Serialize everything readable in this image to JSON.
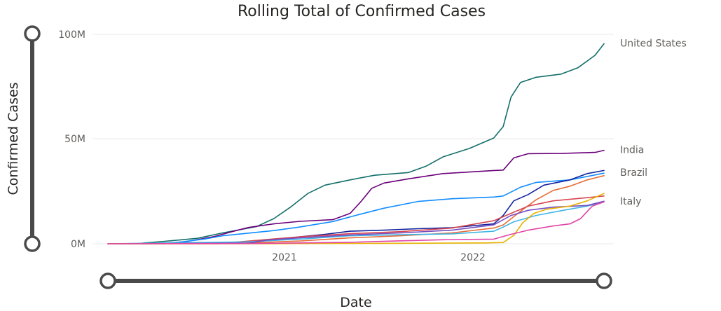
{
  "chart_data": {
    "type": "line",
    "title": "Rolling Total of Confirmed Cases",
    "xlabel": "Date",
    "ylabel": "Confirmed Cases",
    "x_ticks": [
      "2021",
      "2022"
    ],
    "y_ticks": [
      "0M",
      "50M",
      "100M"
    ],
    "x_range": [
      "2020-01-22",
      "2022-07-01"
    ],
    "ylim": [
      0,
      100
    ],
    "y_unit_multiplier": 1000000,
    "grid": true,
    "legend": "none",
    "series": [
      {
        "name": "United States",
        "label": "United States",
        "color": "#136f6b",
        "points": [
          [
            "2020-01-22",
            0
          ],
          [
            "2020-03-15",
            0.1
          ],
          [
            "2020-05-01",
            1.1
          ],
          [
            "2020-07-01",
            2.6
          ],
          [
            "2020-08-15",
            5.2
          ],
          [
            "2020-10-15",
            8.2
          ],
          [
            "2020-11-15",
            12
          ],
          [
            "2020-12-15",
            17.5
          ],
          [
            "2021-01-15",
            24
          ],
          [
            "2021-02-15",
            28
          ],
          [
            "2021-04-01",
            30.5
          ],
          [
            "2021-05-15",
            32.7
          ],
          [
            "2021-07-15",
            34
          ],
          [
            "2021-08-15",
            37
          ],
          [
            "2021-09-15",
            41.5
          ],
          [
            "2021-11-01",
            45.5
          ],
          [
            "2021-12-15",
            50.5
          ],
          [
            "2022-01-01",
            56
          ],
          [
            "2022-01-15",
            70
          ],
          [
            "2022-02-01",
            77
          ],
          [
            "2022-03-01",
            79.5
          ],
          [
            "2022-04-15",
            81
          ],
          [
            "2022-05-15",
            84
          ],
          [
            "2022-06-15",
            90
          ],
          [
            "2022-07-01",
            95.5
          ]
        ]
      },
      {
        "name": "India",
        "label": "India",
        "color": "#6b007b",
        "points": [
          [
            "2020-01-22",
            0
          ],
          [
            "2020-05-01",
            0
          ],
          [
            "2020-06-15",
            1.2
          ],
          [
            "2020-08-01",
            3.5
          ],
          [
            "2020-09-01",
            5.8
          ],
          [
            "2020-10-01",
            7.8
          ],
          [
            "2020-11-15",
            9.5
          ],
          [
            "2021-01-01",
            10.7
          ],
          [
            "2021-03-01",
            11.5
          ],
          [
            "2021-04-01",
            14.5
          ],
          [
            "2021-04-20",
            20
          ],
          [
            "2021-05-10",
            26.5
          ],
          [
            "2021-06-01",
            29
          ],
          [
            "2021-07-15",
            31
          ],
          [
            "2021-09-15",
            33.5
          ],
          [
            "2021-12-15",
            35
          ],
          [
            "2022-01-01",
            35.2
          ],
          [
            "2022-01-20",
            41
          ],
          [
            "2022-02-15",
            43
          ],
          [
            "2022-04-15",
            43.1
          ],
          [
            "2022-06-15",
            43.6
          ],
          [
            "2022-07-01",
            44.6
          ]
        ]
      },
      {
        "name": "Brazil",
        "label": "Brazil",
        "color": "#118dff",
        "points": [
          [
            "2020-01-22",
            0
          ],
          [
            "2020-04-15",
            0
          ],
          [
            "2020-06-01",
            0.8
          ],
          [
            "2020-07-15",
            2.3
          ],
          [
            "2020-08-15",
            3.8
          ],
          [
            "2020-10-01",
            5.1
          ],
          [
            "2020-11-15",
            6.3
          ],
          [
            "2021-01-01",
            8
          ],
          [
            "2021-03-01",
            10.6
          ],
          [
            "2021-04-15",
            13.8
          ],
          [
            "2021-06-01",
            17
          ],
          [
            "2021-08-01",
            20.2
          ],
          [
            "2021-10-01",
            21.5
          ],
          [
            "2021-12-15",
            22.3
          ],
          [
            "2022-01-01",
            22.8
          ],
          [
            "2022-02-01",
            27
          ],
          [
            "2022-03-01",
            29.3
          ],
          [
            "2022-05-01",
            30.5
          ],
          [
            "2022-07-01",
            33.7
          ]
        ]
      },
      {
        "name": "",
        "label": "",
        "color": "#12239e",
        "points": [
          [
            "2020-01-22",
            0
          ],
          [
            "2020-06-01",
            0.1
          ],
          [
            "2020-09-01",
            0.6
          ],
          [
            "2020-11-01",
            1.5
          ],
          [
            "2021-01-01",
            3.3
          ],
          [
            "2021-02-15",
            4.5
          ],
          [
            "2021-04-01",
            6
          ],
          [
            "2021-06-01",
            6.5
          ],
          [
            "2021-08-01",
            7.2
          ],
          [
            "2021-10-01",
            7.7
          ],
          [
            "2021-12-15",
            9.5
          ],
          [
            "2022-01-01",
            13.5
          ],
          [
            "2022-01-20",
            20.5
          ],
          [
            "2022-02-15",
            23.5
          ],
          [
            "2022-03-15",
            28
          ],
          [
            "2022-05-01",
            30.5
          ],
          [
            "2022-06-01",
            33.5
          ],
          [
            "2022-07-01",
            35
          ]
        ]
      },
      {
        "name": "",
        "label": "",
        "color": "#e66c37",
        "points": [
          [
            "2020-01-22",
            0
          ],
          [
            "2020-08-01",
            0
          ],
          [
            "2020-10-01",
            0.4
          ],
          [
            "2021-01-01",
            1.3
          ],
          [
            "2021-04-01",
            2.8
          ],
          [
            "2021-07-01",
            3.8
          ],
          [
            "2021-10-01",
            5.2
          ],
          [
            "2021-12-15",
            7.5
          ],
          [
            "2022-01-01",
            9
          ],
          [
            "2022-02-01",
            15.5
          ],
          [
            "2022-03-01",
            21
          ],
          [
            "2022-04-01",
            25.5
          ],
          [
            "2022-05-01",
            27.5
          ],
          [
            "2022-06-01",
            30.5
          ],
          [
            "2022-07-01",
            32.5
          ]
        ]
      },
      {
        "name": "",
        "label": "",
        "color": "#d64550",
        "points": [
          [
            "2020-01-22",
            0
          ],
          [
            "2020-03-15",
            0.1
          ],
          [
            "2020-06-01",
            0.3
          ],
          [
            "2020-09-01",
            0.6
          ],
          [
            "2020-11-01",
            2
          ],
          [
            "2021-01-01",
            3.3
          ],
          [
            "2021-04-01",
            4.8
          ],
          [
            "2021-07-01",
            5.8
          ],
          [
            "2021-10-01",
            7.5
          ],
          [
            "2021-12-15",
            11
          ],
          [
            "2022-01-15",
            14.5
          ],
          [
            "2022-02-15",
            18
          ],
          [
            "2022-04-01",
            20.5
          ],
          [
            "2022-06-01",
            22
          ],
          [
            "2022-07-01",
            22.8
          ]
        ]
      },
      {
        "name": "Italy",
        "label": "Italy",
        "color": "#41b6e6",
        "points": [
          [
            "2020-01-22",
            0
          ],
          [
            "2020-03-15",
            0.2
          ],
          [
            "2020-06-01",
            0.5
          ],
          [
            "2020-10-01",
            0.9
          ],
          [
            "2020-12-01",
            1.8
          ],
          [
            "2021-01-01",
            2.2
          ],
          [
            "2021-04-01",
            3.8
          ],
          [
            "2021-07-01",
            4.3
          ],
          [
            "2021-10-01",
            4.7
          ],
          [
            "2021-12-15",
            6
          ],
          [
            "2022-01-01",
            8
          ],
          [
            "2022-01-20",
            10.5
          ],
          [
            "2022-03-01",
            13.5
          ],
          [
            "2022-04-15",
            15.8
          ],
          [
            "2022-06-01",
            18
          ],
          [
            "2022-07-01",
            20
          ]
        ]
      },
      {
        "name": "",
        "label": "",
        "color": "#744ec2",
        "points": [
          [
            "2020-01-22",
            0
          ],
          [
            "2020-10-01",
            0.3
          ],
          [
            "2020-11-01",
            1.7
          ],
          [
            "2021-01-01",
            2.8
          ],
          [
            "2021-04-01",
            4.2
          ],
          [
            "2021-07-01",
            5.2
          ],
          [
            "2021-10-01",
            6.5
          ],
          [
            "2021-12-15",
            9
          ],
          [
            "2022-01-15",
            13.5
          ],
          [
            "2022-02-15",
            16
          ],
          [
            "2022-04-01",
            17.5
          ],
          [
            "2022-06-01",
            18.3
          ],
          [
            "2022-07-01",
            20.3
          ]
        ]
      },
      {
        "name": "",
        "label": "",
        "color": "#e8b300",
        "points": [
          [
            "2020-01-22",
            0
          ],
          [
            "2020-10-01",
            0
          ],
          [
            "2021-01-01",
            0.1
          ],
          [
            "2021-06-01",
            0.2
          ],
          [
            "2021-12-01",
            0.4
          ],
          [
            "2022-01-01",
            0.6
          ],
          [
            "2022-01-20",
            4
          ],
          [
            "2022-02-05",
            10
          ],
          [
            "2022-02-25",
            14.5
          ],
          [
            "2022-03-20",
            16.5
          ],
          [
            "2022-05-01",
            18
          ],
          [
            "2022-06-01",
            20.5
          ],
          [
            "2022-07-01",
            24
          ]
        ]
      },
      {
        "name": "",
        "label": "",
        "color": "#e044a7",
        "points": [
          [
            "2020-01-22",
            0
          ],
          [
            "2020-10-01",
            0.1
          ],
          [
            "2021-01-01",
            0.4
          ],
          [
            "2021-04-01",
            0.7
          ],
          [
            "2021-07-01",
            1.4
          ],
          [
            "2021-10-01",
            2
          ],
          [
            "2021-12-15",
            2.2
          ],
          [
            "2022-01-15",
            4.5
          ],
          [
            "2022-02-15",
            6.5
          ],
          [
            "2022-04-01",
            8.5
          ],
          [
            "2022-05-01",
            9.5
          ],
          [
            "2022-05-20",
            12
          ],
          [
            "2022-06-10",
            18
          ],
          [
            "2022-07-01",
            20
          ]
        ]
      }
    ]
  }
}
